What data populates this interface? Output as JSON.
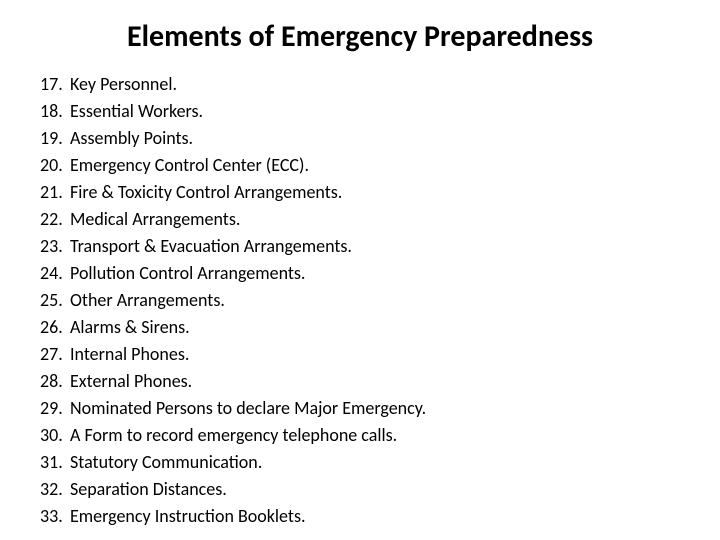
{
  "title": "Elements of Emergency Preparedness",
  "start_number": 17,
  "items": [
    "Key Personnel.",
    "Essential Workers.",
    "Assembly Points.",
    "Emergency Control Center (ECC).",
    "Fire & Toxicity Control Arrangements.",
    "Medical Arrangements.",
    "Transport & Evacuation Arrangements.",
    "Pollution Control Arrangements.",
    "Other Arrangements.",
    "Alarms & Sirens.",
    "Internal Phones.",
    "External Phones.",
    "Nominated Persons to declare Major Emergency.",
    "A Form to record emergency telephone calls.",
    "Statutory Communication.",
    "Separation Distances.",
    "Emergency Instruction Booklets."
  ],
  "styling": {
    "background_color": "#ffffff",
    "title_color": "#000000",
    "title_fontsize": 30,
    "title_fontweight": 700,
    "item_color": "#000000",
    "item_fontsize": 18,
    "font_family": "Calibri"
  }
}
